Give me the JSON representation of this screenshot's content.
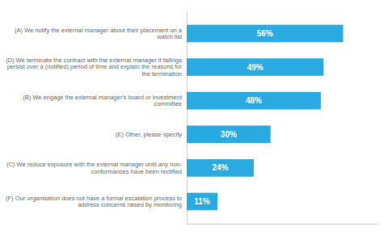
{
  "chart_data": {
    "type": "bar",
    "orientation": "horizontal",
    "categories": [
      "(A) We notify the external manager about their placement on a\nwatch list",
      "(D) We terminate the contract with the external manager if failings\npersist over a (notified) period of time and explain the reasons for\nthe termination",
      "(B) We engage the external manager's board or investment\ncommittee",
      "(E) Other, please specify",
      "(C) We reduce exposure with the external manager until any non-\nconformances have been rectified",
      "(F) Our organisation does not have a formal escalation process to\naddress concerns raised by monitoring"
    ],
    "values": [
      56,
      49,
      48,
      30,
      24,
      11
    ],
    "value_labels": [
      "56%",
      "49%",
      "48%",
      "30%",
      "24%",
      "11%"
    ],
    "data_labels": true,
    "color": "#29ABE2",
    "xlim": [
      0,
      68
    ],
    "tick_labels": "y",
    "grid": false
  }
}
